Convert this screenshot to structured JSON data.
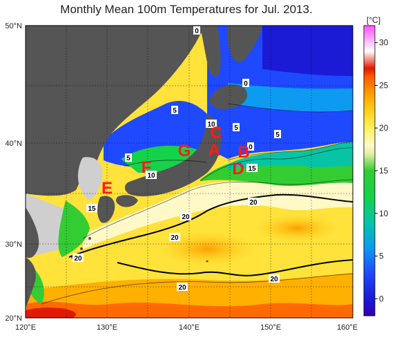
{
  "title": "Monthly Mean 100m Temperatures for Jul. 2013.",
  "colorbar": {
    "unit": "[°C]",
    "ticks": [
      "30",
      "25",
      "20",
      "15",
      "10",
      "5",
      "0"
    ],
    "tick_values": [
      30,
      25,
      20,
      15,
      10,
      5,
      0
    ],
    "range": [
      -2,
      32
    ],
    "stops": [
      {
        "v": -2,
        "c": "#2c00b0"
      },
      {
        "v": 0,
        "c": "#1b1bd6"
      },
      {
        "v": 3,
        "c": "#1f49ff"
      },
      {
        "v": 6,
        "c": "#0c9bf0"
      },
      {
        "v": 9,
        "c": "#07c4a6"
      },
      {
        "v": 12,
        "c": "#15d24a"
      },
      {
        "v": 15,
        "c": "#33cc33"
      },
      {
        "v": 17,
        "c": "#e6f0a8"
      },
      {
        "v": 18,
        "c": "#fff9c8"
      },
      {
        "v": 20,
        "c": "#fff15a"
      },
      {
        "v": 22,
        "c": "#ffd11a"
      },
      {
        "v": 24,
        "c": "#ff9e00"
      },
      {
        "v": 26,
        "c": "#ff5a00"
      },
      {
        "v": 27,
        "c": "#e01a00"
      },
      {
        "v": 29,
        "c": "#ffffff"
      },
      {
        "v": 31,
        "c": "#ff88ff"
      },
      {
        "v": 32,
        "c": "#ff55ff"
      }
    ]
  },
  "axes": {
    "lat_labels": [
      "50°N",
      "40°N",
      "30°N",
      "20°N"
    ],
    "lon_labels": [
      "120°E",
      "130°E",
      "140°E",
      "150°E",
      "160°E"
    ],
    "land_color": "#555555",
    "dry_color": "#cfcfcf"
  },
  "contour_labels": [
    "0",
    "0",
    "5",
    "5",
    "5",
    "5",
    "10",
    "0",
    "10",
    "15",
    "15",
    "20",
    "20",
    "20",
    "20",
    "20",
    "20",
    "20"
  ],
  "region_labels": [
    "A",
    "B",
    "C",
    "D",
    "E",
    "F",
    "G"
  ]
}
